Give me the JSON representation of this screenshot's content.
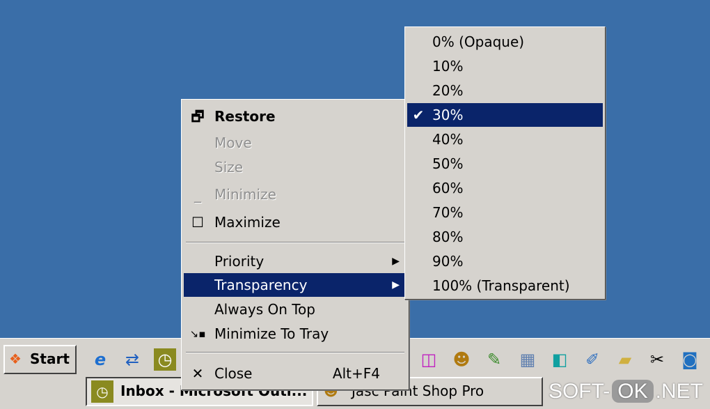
{
  "colors": {
    "desktop": "#3a6ea8",
    "menu": "#d6d3ce",
    "highlight": "#0a246a"
  },
  "menu": {
    "items": [
      {
        "label": "Restore",
        "icon": "restore-icon",
        "state": "bold"
      },
      {
        "label": "Move",
        "state": "disabled"
      },
      {
        "label": "Size",
        "state": "disabled"
      },
      {
        "label": "Minimize",
        "icon": "minimize-icon",
        "state": "disabled"
      },
      {
        "label": "Maximize",
        "icon": "maximize-icon"
      },
      {
        "label": "Priority",
        "submenu": true
      },
      {
        "label": "Transparency",
        "submenu": true,
        "state": "highlighted"
      },
      {
        "label": "Always On Top"
      },
      {
        "label": "Minimize To Tray",
        "icon": "minimize-to-tray-icon"
      },
      {
        "label": "Close",
        "icon": "close-icon",
        "shortcut": "Alt+F4"
      }
    ]
  },
  "submenu": {
    "selected": "30%",
    "items": [
      "0% (Opaque)",
      "10%",
      "20%",
      "30%",
      "40%",
      "50%",
      "60%",
      "70%",
      "80%",
      "90%",
      "100% (Transparent)"
    ]
  },
  "taskbar": {
    "start": "Start",
    "tasks": [
      "Inbox - Microsoft Outl...",
      "Jasc Paint Shop Pro"
    ]
  },
  "watermark": {
    "a": "SOFT-",
    "b": "OK",
    ".c": "",
    "c": ".NET"
  }
}
